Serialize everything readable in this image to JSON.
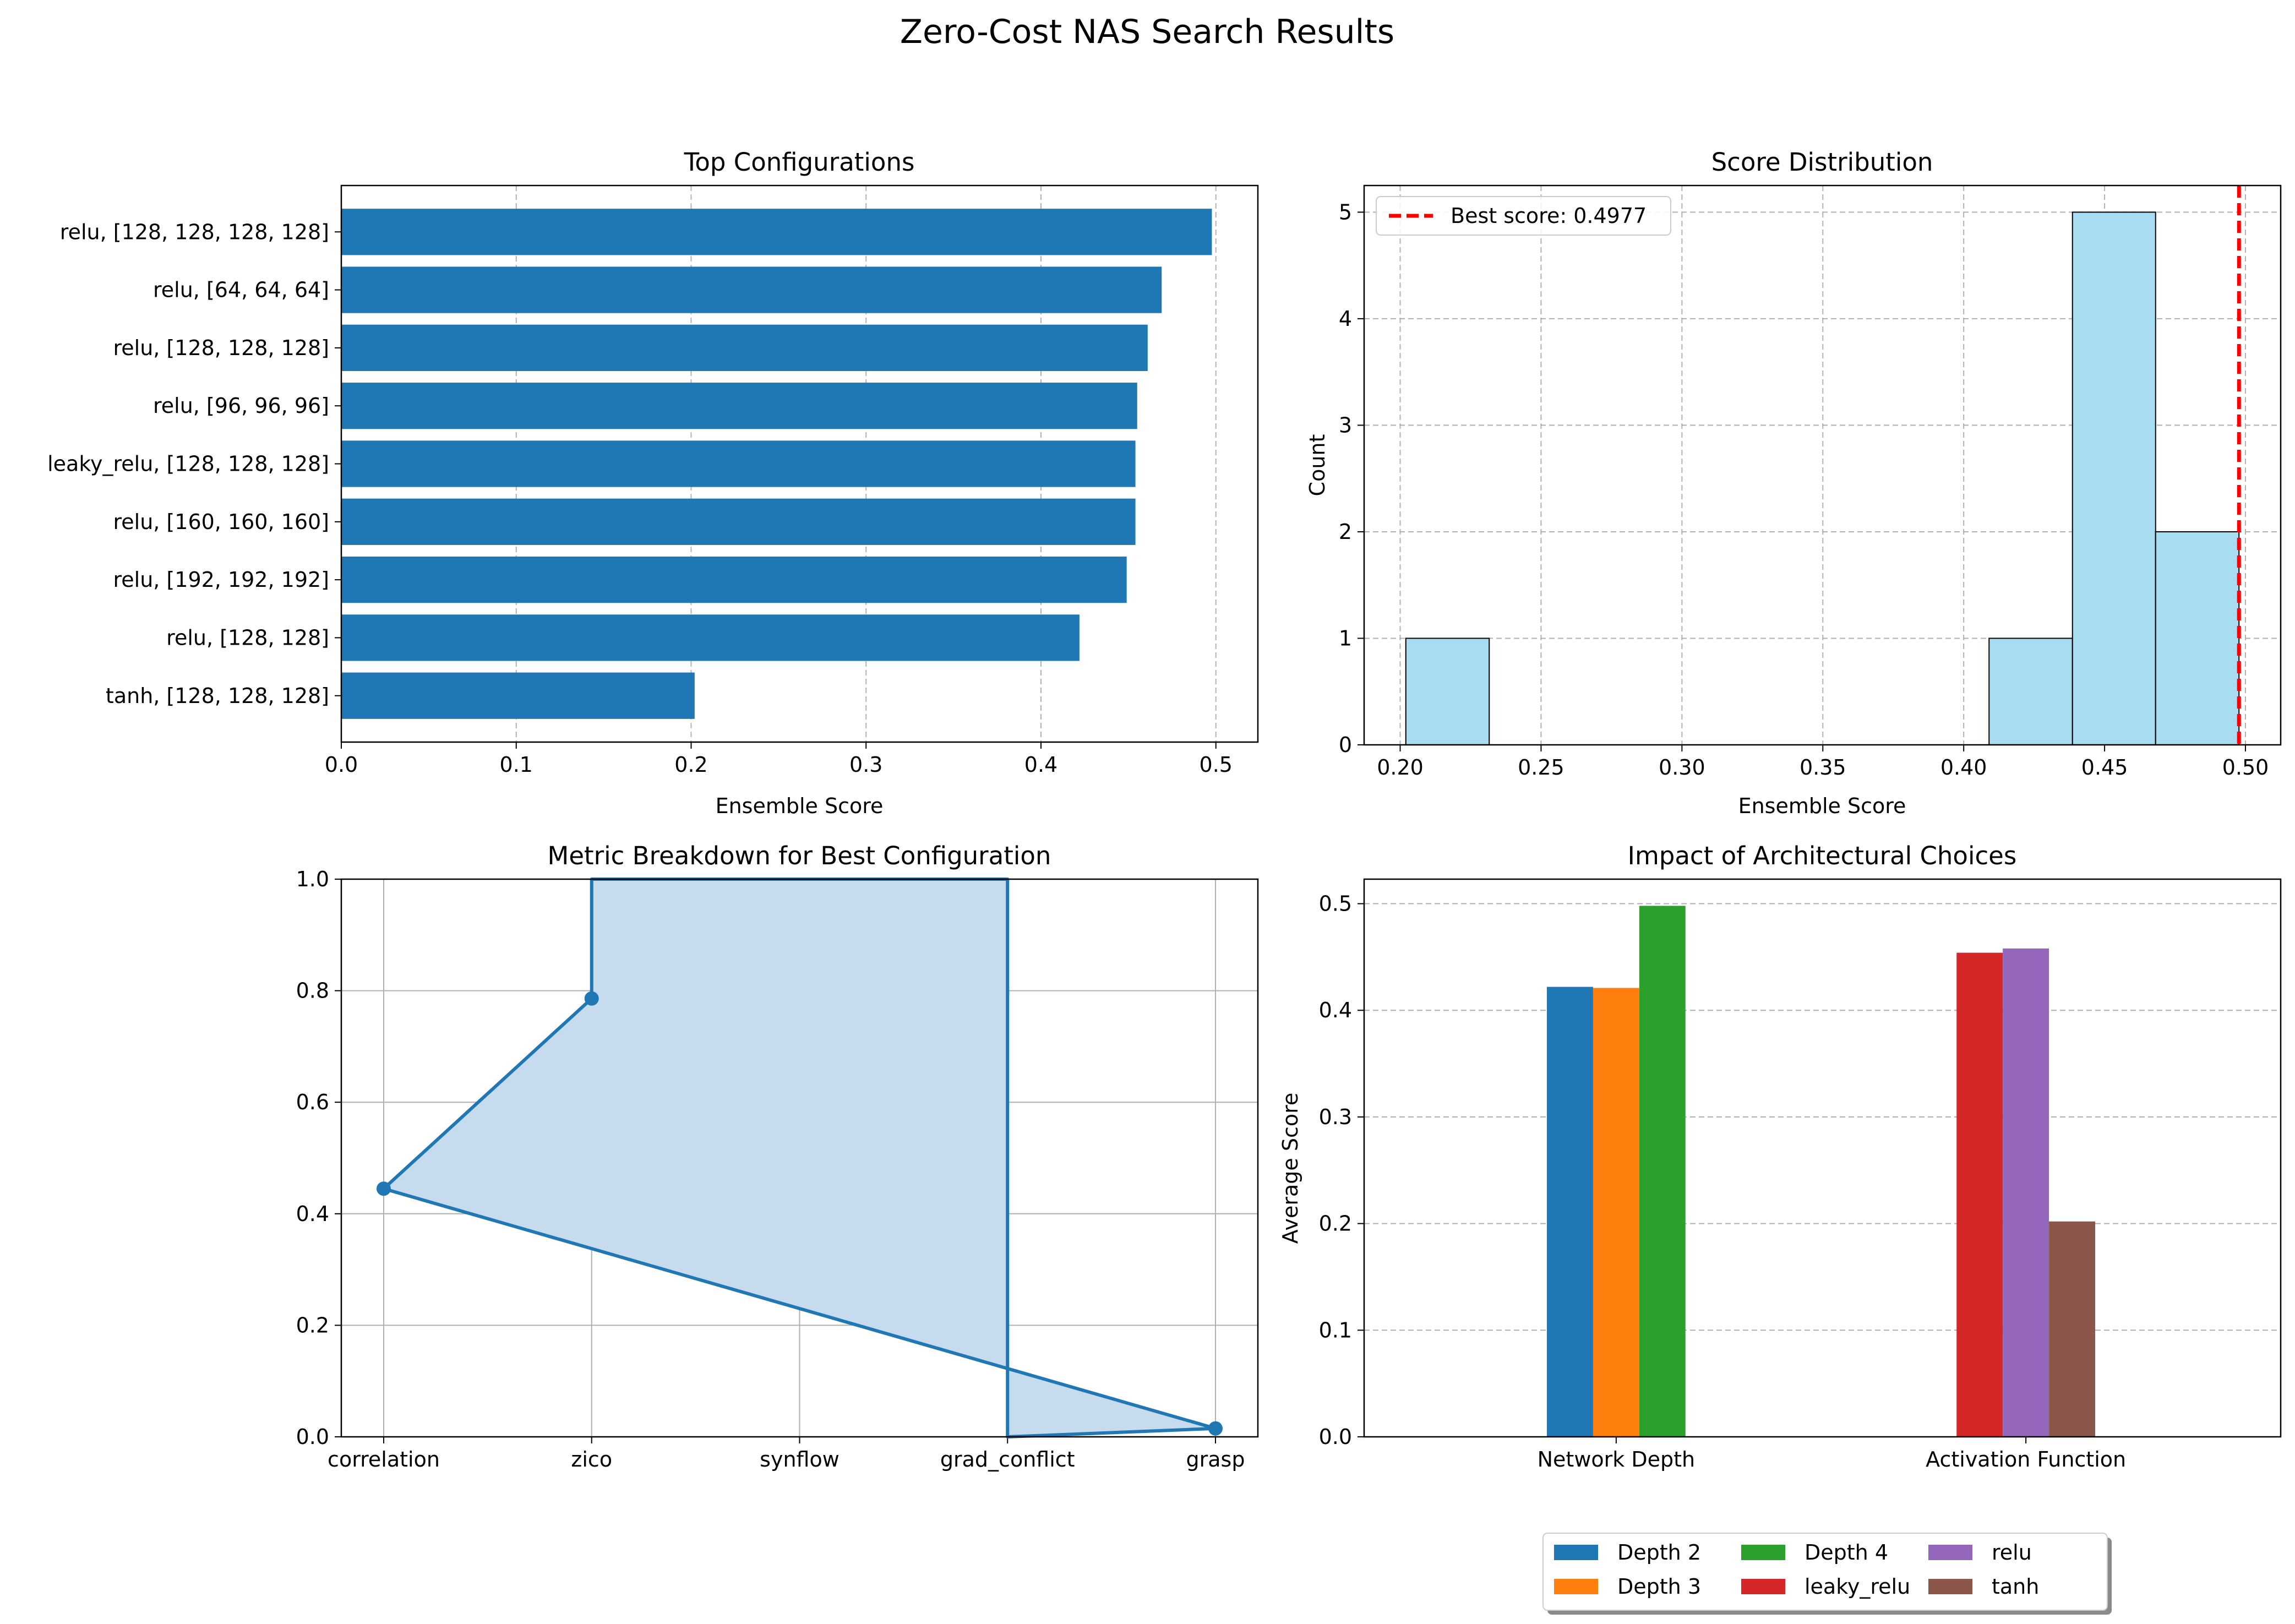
{
  "figure": {
    "title": "Zero-Cost NAS Search Results"
  },
  "chart_data": [
    {
      "type": "bar",
      "orientation": "horizontal",
      "title": "Top Configurations",
      "xlabel": "Ensemble Score",
      "ylabel": "",
      "categories": [
        "relu, [128, 128, 128, 128]",
        "relu, [64, 64, 64]",
        "relu, [128, 128, 128]",
        "relu, [96, 96, 96]",
        "leaky_relu, [128, 128, 128]",
        "relu, [160, 160, 160]",
        "relu, [192, 192, 192]",
        "relu, [128, 128]",
        "tanh, [128, 128, 128]"
      ],
      "values": [
        0.4977,
        0.469,
        0.461,
        0.455,
        0.454,
        0.454,
        0.449,
        0.422,
        0.202
      ],
      "xlim": [
        0,
        0.524
      ],
      "xticks": [
        "0.0",
        "0.1",
        "0.2",
        "0.3",
        "0.4",
        "0.5"
      ],
      "grid": "x dashed",
      "color": "#1f77b4"
    },
    {
      "type": "histogram",
      "title": "Score Distribution",
      "xlabel": "Ensemble Score",
      "ylabel": "Count",
      "bin_edges": [
        0.202,
        0.2316,
        0.2611,
        0.2907,
        0.3203,
        0.3498,
        0.3794,
        0.409,
        0.4386,
        0.4681,
        0.4977
      ],
      "counts": [
        1,
        0,
        0,
        0,
        0,
        0,
        0,
        1,
        5,
        2
      ],
      "xlim": [
        0.1872,
        0.5125
      ],
      "ylim": [
        0,
        5.25
      ],
      "xticks": [
        "0.20",
        "0.25",
        "0.30",
        "0.35",
        "0.40",
        "0.45",
        "0.50"
      ],
      "yticks": [
        "0",
        "1",
        "2",
        "3",
        "4",
        "5"
      ],
      "grid": "both dashed",
      "legend_position": "top-left",
      "color": "#a8dcf0",
      "reference_line": {
        "x": 0.4977,
        "label": "Best score: 0.4977",
        "color": "#ff0000",
        "style": "dashed"
      }
    },
    {
      "type": "line",
      "title": "Metric Breakdown for Best Configuration",
      "xlabel": "",
      "ylabel": "",
      "categories": [
        "correlation",
        "zico",
        "synflow",
        "grad_conflict",
        "grasp"
      ],
      "points": [
        {
          "x": 0,
          "y": 0.445
        },
        {
          "x": 1,
          "y": 0.786
        },
        {
          "x": 1,
          "y": 1.0
        },
        {
          "x": 3,
          "y": 1.0
        },
        {
          "x": 3,
          "y": 0.0
        },
        {
          "x": 4,
          "y": 0.015
        },
        {
          "x": 0,
          "y": 0.445
        }
      ],
      "markers": [
        {
          "x": 0,
          "y": 0.445
        },
        {
          "x": 1,
          "y": 0.786
        },
        {
          "x": 4,
          "y": 0.015
        }
      ],
      "fill": true,
      "ylim": [
        0,
        1.0
      ],
      "yticks": [
        "0.0",
        "0.2",
        "0.4",
        "0.6",
        "0.8",
        "1.0"
      ],
      "grid": "both solid",
      "color": "#1f77b4",
      "fill_color": "#c6dcee"
    },
    {
      "type": "bar",
      "title": "Impact of Architectural Choices",
      "xlabel": "",
      "ylabel": "Average Score",
      "groups": [
        "Network Depth",
        "Activation Function"
      ],
      "series": [
        {
          "name": "Depth 2",
          "group": 0,
          "value": 0.422,
          "color": "#1f77b4"
        },
        {
          "name": "Depth 3",
          "group": 0,
          "value": 0.421,
          "color": "#ff7f0e"
        },
        {
          "name": "Depth 4",
          "group": 0,
          "value": 0.498,
          "color": "#2ca02c"
        },
        {
          "name": "leaky_relu",
          "group": 1,
          "value": 0.454,
          "color": "#d62728"
        },
        {
          "name": "relu",
          "group": 1,
          "value": 0.458,
          "color": "#9467bd"
        },
        {
          "name": "tanh",
          "group": 1,
          "value": 0.202,
          "color": "#8c564b"
        }
      ],
      "ylim": [
        0,
        0.523
      ],
      "yticks": [
        "0.0",
        "0.1",
        "0.2",
        "0.3",
        "0.4",
        "0.5"
      ],
      "grid": "y dashed",
      "legend_position": "bottom-center"
    }
  ]
}
